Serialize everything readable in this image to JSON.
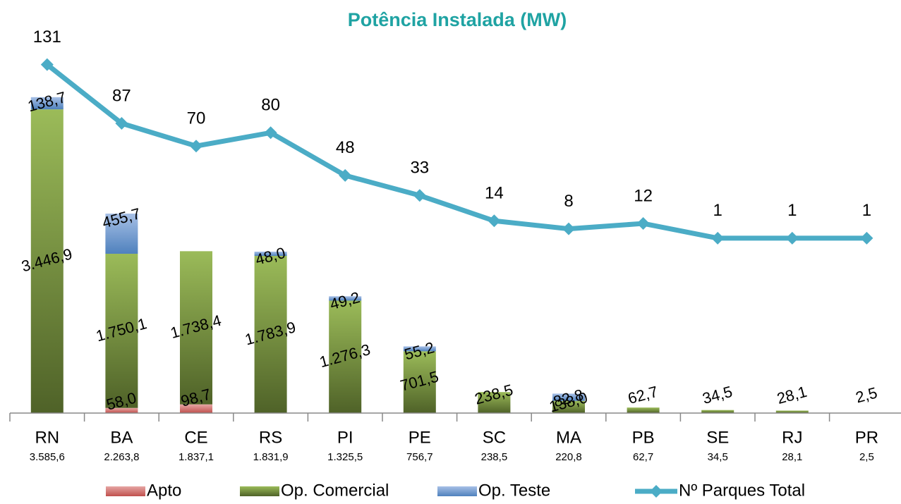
{
  "chart_data": {
    "type": "bar-line",
    "title": "Potência Instalada (MW)",
    "categories": [
      "RN",
      "BA",
      "CE",
      "RS",
      "PI",
      "PE",
      "SC",
      "MA",
      "PB",
      "SE",
      "RJ",
      "PR"
    ],
    "totals": [
      3585.6,
      2263.8,
      1837.1,
      1831.9,
      1325.5,
      756.7,
      238.5,
      220.8,
      62.7,
      34.5,
      28.1,
      2.5
    ],
    "total_labels": [
      "3.585,6",
      "2.263,8",
      "1.837,1",
      "1.831,9",
      "1.325,5",
      "756,7",
      "238,5",
      "220,8",
      "62,7",
      "34,5",
      "28,1",
      "2,5"
    ],
    "ylim": [
      0,
      4000
    ],
    "y2lim": [
      -130,
      134
    ],
    "legend": "bottom",
    "series": [
      {
        "name": "Apto",
        "color": "#c0504d",
        "values": [
          null,
          58.0,
          98.7,
          null,
          null,
          null,
          null,
          null,
          null,
          null,
          null,
          null
        ],
        "value_labels": [
          null,
          "58,0",
          "98,7",
          null,
          null,
          null,
          null,
          null,
          null,
          null,
          null,
          null
        ]
      },
      {
        "name": "Op. Comercial",
        "color": "#9bbb59",
        "values": [
          3446.9,
          1750.1,
          1738.4,
          1783.9,
          1276.3,
          701.5,
          238.5,
          138.0,
          62.7,
          34.5,
          28.1,
          2.5
        ],
        "value_labels": [
          "3.446,9",
          "1.750,1",
          "1.738,4",
          "1.783,9",
          "1.276,3",
          "701,5",
          "238,5",
          "138,0",
          "62,7",
          "34,5",
          "28,1",
          "2,5"
        ]
      },
      {
        "name": "Op.  Teste",
        "color": "#4f81bd",
        "values": [
          138.7,
          455.7,
          null,
          48.0,
          49.2,
          55.2,
          null,
          82.8,
          null,
          null,
          null,
          null
        ],
        "value_labels": [
          "138,7",
          "455,7",
          null,
          "48,0",
          "49,2",
          "55,2",
          null,
          "82,8",
          null,
          null,
          null,
          null
        ]
      },
      {
        "name": "Nº Parques Total",
        "color": "#4bacc6",
        "axis": "y2",
        "values": [
          131,
          87,
          70,
          80,
          48,
          33,
          14,
          8,
          12,
          1,
          1,
          1
        ]
      }
    ]
  }
}
